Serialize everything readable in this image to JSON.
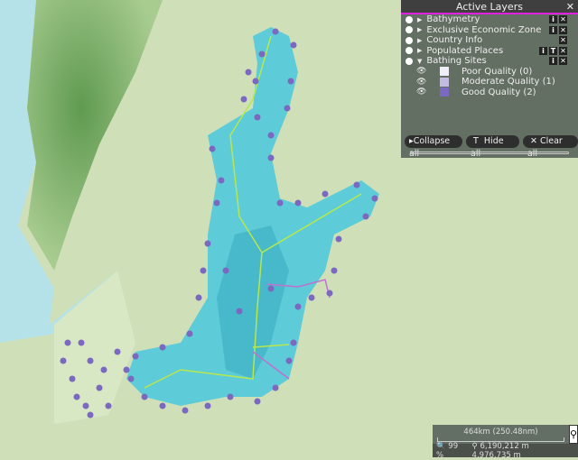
{
  "panel": {
    "title": "Active Layers",
    "layers": [
      {
        "name": "Bathymetry",
        "expanded": false,
        "buttons": [
          "i",
          "x"
        ]
      },
      {
        "name": "Exclusive Economic Zone",
        "expanded": false,
        "buttons": [
          "i",
          "x"
        ]
      },
      {
        "name": "Country Info",
        "expanded": false,
        "buttons": [
          "x"
        ]
      },
      {
        "name": "Populated Places",
        "expanded": false,
        "buttons": [
          "i",
          "T",
          "x"
        ]
      },
      {
        "name": "Bathing Sites",
        "expanded": true,
        "buttons": [
          "i",
          "x"
        ]
      }
    ],
    "legend": [
      {
        "label": "Poor Quality (0)",
        "color": "#f0eef8"
      },
      {
        "label": "Moderate Quality (1)",
        "color": "#c2bde0"
      },
      {
        "label": "Good Quality (2)",
        "color": "#7b68c0"
      }
    ],
    "collapse_all": "Collapse all",
    "hide_all": "Hide all",
    "clear_all": "Clear all"
  },
  "scale": {
    "label": "464km (250.48nm)"
  },
  "status": {
    "zoom": "99 %",
    "x": "6,190,212 m",
    "y": "4,976,735 m"
  },
  "colors": {
    "land": "#cfe0b8",
    "sea": "#5ecbd8",
    "bathing_good": "#7b68c0",
    "eez_border": "#b8e84a",
    "accent": "#e020e0"
  }
}
